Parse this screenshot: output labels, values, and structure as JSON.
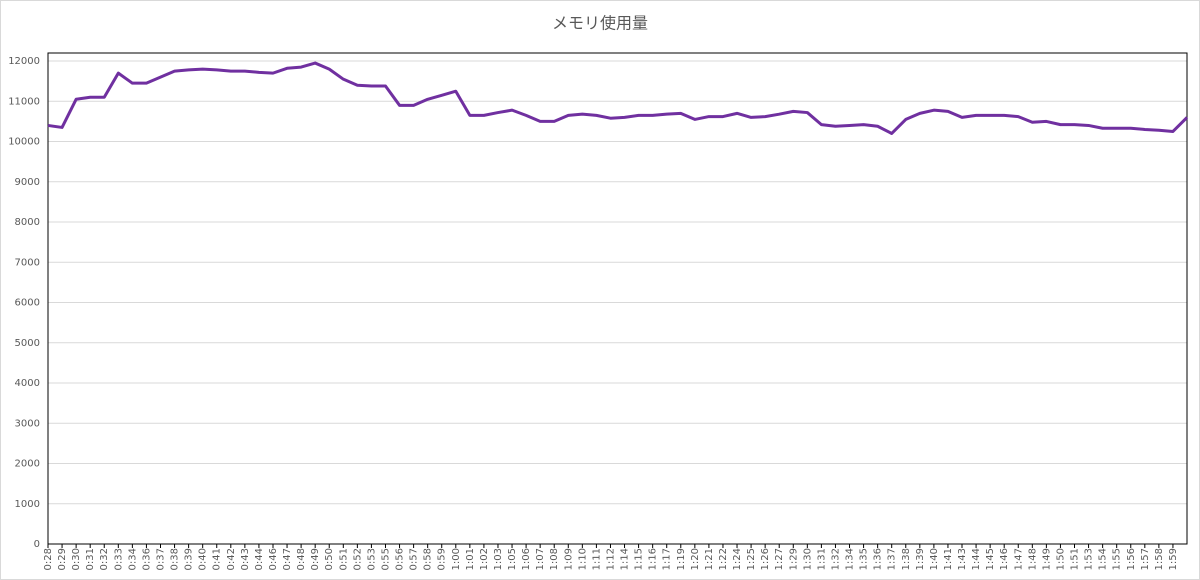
{
  "chart_data": {
    "type": "line",
    "title": "メモリ使用量",
    "categories": [
      "0:28",
      "0:29",
      "0:30",
      "0:31",
      "0:32",
      "0:33",
      "0:34",
      "0:36",
      "0:37",
      "0:38",
      "0:39",
      "0:40",
      "0:41",
      "0:42",
      "0:43",
      "0:44",
      "0:46",
      "0:47",
      "0:48",
      "0:49",
      "0:50",
      "0:51",
      "0:52",
      "0:53",
      "0:55",
      "0:56",
      "0:57",
      "0:58",
      "0:59",
      "1:00",
      "1:01",
      "1:02",
      "1:03",
      "1:05",
      "1:06",
      "1:07",
      "1:08",
      "1:09",
      "1:10",
      "1:11",
      "1:12",
      "1:14",
      "1:15",
      "1:16",
      "1:17",
      "1:19",
      "1:20",
      "1:21",
      "1:22",
      "1:24",
      "1:25",
      "1:26",
      "1:27",
      "1:29",
      "1:30",
      "1:31",
      "1:32",
      "1:34",
      "1:35",
      "1:36",
      "1:37",
      "1:38",
      "1:39",
      "1:40",
      "1:41",
      "1:43",
      "1:44",
      "1:45",
      "1:46",
      "1:47",
      "1:48",
      "1:49",
      "1:50",
      "1:51",
      "1:53",
      "1:54",
      "1:55",
      "1:56",
      "1:57",
      "1:58",
      "1:59",
      null
    ],
    "series": [
      {
        "color": "#7030a0",
        "values": [
          10400,
          10350,
          11050,
          11100,
          11100,
          11700,
          11450,
          11450,
          11600,
          11750,
          11780,
          11800,
          11780,
          11750,
          11750,
          11720,
          11700,
          11820,
          11850,
          11950,
          11800,
          11550,
          11400,
          11380,
          11380,
          10900,
          10900,
          11050,
          11150,
          11250,
          10650,
          10650,
          10720,
          10780,
          10650,
          10500,
          10500,
          10650,
          10680,
          10650,
          10580,
          10600,
          10650,
          10650,
          10680,
          10700,
          10550,
          10620,
          10620,
          10700,
          10600,
          10620,
          10680,
          10750,
          10720,
          10420,
          10380,
          10400,
          10420,
          10380,
          10200,
          10550,
          10700,
          10780,
          10750,
          10600,
          10650,
          10650,
          10650,
          10620,
          10480,
          10500,
          10420,
          10420,
          10400,
          10330,
          10330,
          10330,
          10300,
          10280,
          10250,
          10600
        ]
      }
    ],
    "ylim": [
      0,
      12200
    ],
    "yticks": [
      0,
      1000,
      2000,
      3000,
      4000,
      5000,
      6000,
      7000,
      8000,
      9000,
      10000,
      11000,
      12000
    ],
    "grid": true
  }
}
